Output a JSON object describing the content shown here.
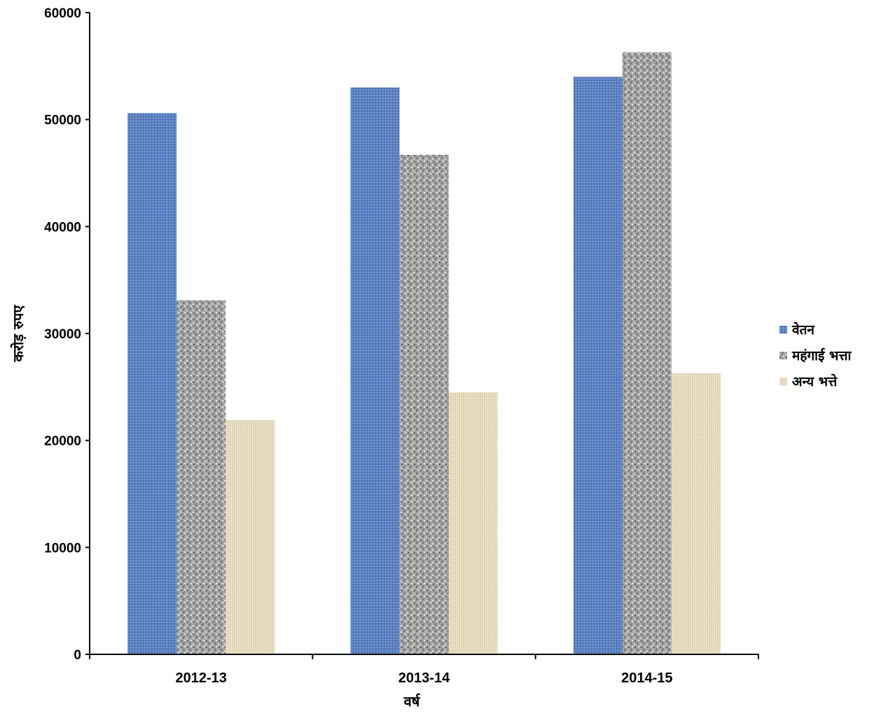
{
  "chart_data": {
    "type": "bar",
    "title": "",
    "xlabel": "वर्ष",
    "ylabel": "करोड़ रुपए",
    "categories": [
      "2012-13",
      "2013-14",
      "2014-15"
    ],
    "series": [
      {
        "name": "वेतन",
        "values": [
          50600,
          53000,
          54000
        ],
        "color": "#5b80c4"
      },
      {
        "name": "महंगाई भत्ता",
        "values": [
          33100,
          46700,
          56300
        ],
        "color": "#9d9d9d"
      },
      {
        "name": "अन्य भत्ते",
        "values": [
          21900,
          24500,
          26300
        ],
        "color": "#e3d6b8"
      }
    ],
    "ylim": [
      0,
      60000
    ],
    "yticks": [
      0,
      10000,
      20000,
      30000,
      40000,
      50000,
      60000
    ],
    "grid": false,
    "legend_position": "right"
  }
}
